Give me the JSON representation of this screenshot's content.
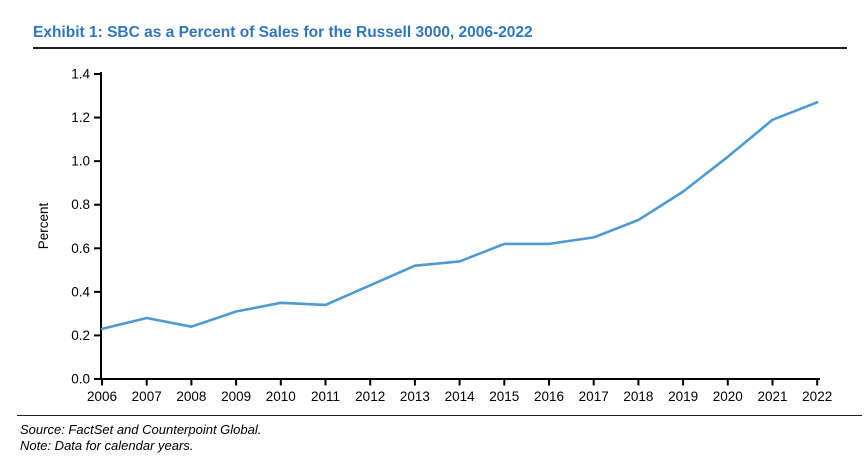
{
  "title": "Exhibit 1: SBC as a Percent of Sales for the Russell 3000, 2006-2022",
  "footer": {
    "source_line": "Source: FactSet and Counterpoint Global.",
    "note_line": "Note: Data for calendar years."
  },
  "colors": {
    "title_blue": "#3176c1",
    "series_line": "#4d9ad5",
    "axis": "#000000",
    "rule": "#1a1a1a"
  },
  "chart_data": {
    "type": "line",
    "title": "Exhibit 1: SBC as a Percent of Sales for the Russell 3000, 2006-2022",
    "x": [
      2006,
      2007,
      2008,
      2009,
      2010,
      2011,
      2012,
      2013,
      2014,
      2015,
      2016,
      2017,
      2018,
      2019,
      2020,
      2021,
      2022
    ],
    "series": [
      {
        "name": "SBC as a Percent of Sales",
        "values": [
          0.23,
          0.28,
          0.24,
          0.31,
          0.35,
          0.34,
          0.43,
          0.52,
          0.54,
          0.62,
          0.62,
          0.65,
          0.73,
          0.86,
          1.02,
          1.19,
          1.27
        ]
      }
    ],
    "xlabel": "",
    "ylabel": "Percent",
    "ylim": [
      0.0,
      1.4
    ],
    "ytick_step": 0.2,
    "ytick_labels": [
      "0.0",
      "0.2",
      "0.4",
      "0.6",
      "0.8",
      "1.0",
      "1.2",
      "1.4"
    ],
    "grid": false,
    "legend_position": "none"
  }
}
